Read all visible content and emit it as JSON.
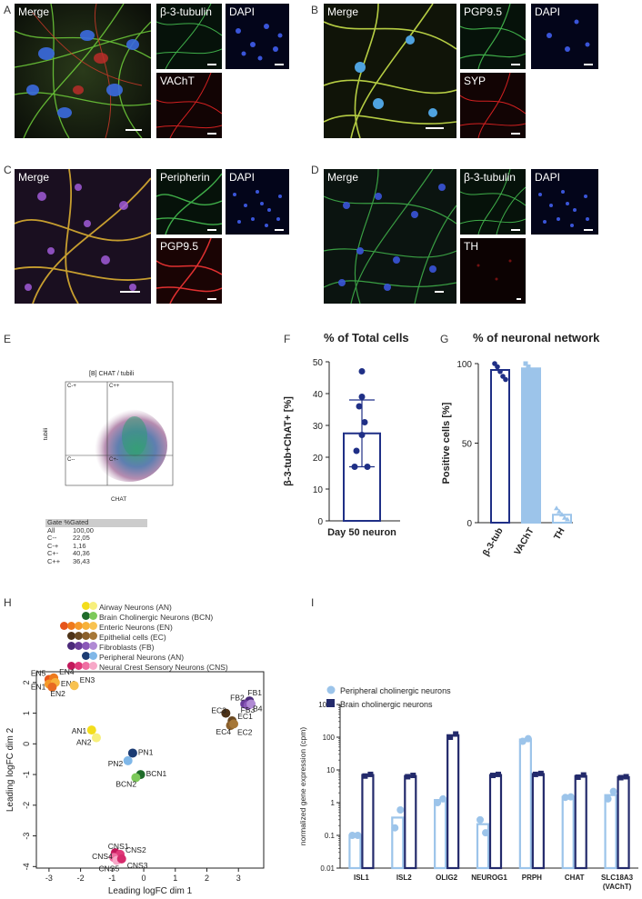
{
  "panels": {
    "A": {
      "label": "A",
      "merge": "Merge",
      "ch1": "β-3-tubulin",
      "ch2": "DAPI",
      "ch3": "VAChT"
    },
    "B": {
      "label": "B",
      "merge": "Merge",
      "ch1": "PGP9.5",
      "ch2": "DAPI",
      "ch3": "SYP"
    },
    "C": {
      "label": "C",
      "merge": "Merge",
      "ch1": "Peripherin",
      "ch2": "DAPI",
      "ch3": "PGP9.5"
    },
    "D": {
      "label": "D",
      "merge": "Merge",
      "ch1": "β-3-tubulin",
      "ch2": "DAPI",
      "ch3": "TH"
    },
    "E": {
      "label": "E"
    },
    "F": {
      "label": "F"
    },
    "G": {
      "label": "G"
    },
    "H": {
      "label": "H"
    },
    "I": {
      "label": "I"
    }
  },
  "colors": {
    "green": "#3fae49",
    "red": "#d32020",
    "blue": "#3a55d9",
    "navy": "#1f2f86",
    "light_blue": "#9cc4ea",
    "dark_navy": "#232a6b"
  },
  "flow": {
    "title": "[B] CHAT / tubili",
    "xlabel": "CHAT",
    "ylabel": "tubili",
    "quadrants": {
      "tl": "C-+",
      "tr": "C++",
      "bl": "C--",
      "br": "C+-"
    },
    "table_header": "Gate %Gated",
    "table_rows": [
      [
        "All",
        "100,00"
      ],
      [
        "C--",
        "22,05"
      ],
      [
        "C-+",
        "1,16"
      ],
      [
        "C+-",
        "40,36"
      ],
      [
        "C++",
        "36,43"
      ]
    ]
  },
  "chart_F": {
    "title": "% of Total cells",
    "ylabel": "β-3-tub+ChAT+ [%]",
    "yticks": [
      "0",
      "10",
      "20",
      "30",
      "40",
      "50"
    ],
    "ylim": [
      0,
      50
    ],
    "category": "Day 50 neuron",
    "mean": 27.5,
    "sd": 10.5,
    "points": [
      47,
      39,
      36,
      31,
      27,
      22,
      17,
      17
    ]
  },
  "chart_G": {
    "title": "% of neuronal network",
    "ylabel": "Positive cells [%]",
    "yticks": [
      "0",
      "50",
      "100"
    ],
    "ylim": [
      0,
      100
    ],
    "categories": [
      "β-3-tub",
      "VAChT",
      "TH"
    ],
    "values": [
      96,
      97,
      5
    ],
    "points": [
      [
        100,
        98,
        95,
        92,
        90
      ],
      [
        100,
        98,
        96,
        94,
        92
      ],
      [
        9,
        7,
        5,
        3,
        2
      ]
    ]
  },
  "chart_H": {
    "xlabel": "Leading logFC dim 1",
    "ylabel": "Leading logFC dim 2",
    "xticks": [
      "-3",
      "-2",
      "-1",
      "0",
      "1",
      "2",
      "3"
    ],
    "yticks": [
      "2",
      "1",
      "0",
      "-1",
      "-2",
      "-3",
      "-4"
    ],
    "legend": [
      {
        "label": "Airway Neurons (AN)",
        "colors": [
          "#f3dd1c",
          "#f7ef7c"
        ]
      },
      {
        "label": "Brain Cholinergic Neurons (BCN)",
        "colors": [
          "#1f6b2a",
          "#7cc95a"
        ]
      },
      {
        "label": "Enteric Neurons (EN)",
        "colors": [
          "#e6551b",
          "#ef7a1c",
          "#f59a2a",
          "#f7b13a",
          "#f8c250"
        ]
      },
      {
        "label": "Epithelial cells (EC)",
        "colors": [
          "#4d3318",
          "#6b4a22",
          "#8a602c",
          "#a67737"
        ]
      },
      {
        "label": "Fibroblasts (FB)",
        "colors": [
          "#4b2a7a",
          "#6a3d9a",
          "#8a58b8",
          "#b08ad4"
        ]
      },
      {
        "label": "Peripheral Neurons (AN)",
        "colors": [
          "#1b3b73",
          "#7fb7e8"
        ]
      },
      {
        "label": "Neural Crest Sensory Neurons (CNS)",
        "colors": [
          "#c2185b",
          "#e03a7a",
          "#ef6fa2",
          "#f7a8c8"
        ]
      }
    ],
    "points": [
      {
        "label": "EN5",
        "x": -3.0,
        "y": 2.1,
        "color": "#e6551b"
      },
      {
        "label": "EN4",
        "x": -2.85,
        "y": 2.15,
        "color": "#ef7a1c"
      },
      {
        "label": "EN1",
        "x": -3.0,
        "y": 1.95,
        "color": "#f59a2a"
      },
      {
        "label": "EN6",
        "x": -2.8,
        "y": 2.0,
        "color": "#f7b13a"
      },
      {
        "label": "EN2",
        "x": -2.9,
        "y": 1.85,
        "color": "#e86a22"
      },
      {
        "label": "EN3",
        "x": -2.2,
        "y": 1.9,
        "color": "#f8c250"
      },
      {
        "label": "FB1",
        "x": 3.35,
        "y": 1.4,
        "color": "#4b2a7a"
      },
      {
        "label": "FB2",
        "x": 3.2,
        "y": 1.3,
        "color": "#6a3d9a"
      },
      {
        "label": "FB3",
        "x": 3.3,
        "y": 1.25,
        "color": "#8a58b8"
      },
      {
        "label": "B4",
        "x": 3.4,
        "y": 1.3,
        "color": "#b08ad4"
      },
      {
        "label": "EC3",
        "x": 2.6,
        "y": 1.0,
        "color": "#4d3318"
      },
      {
        "label": "EC1",
        "x": 2.8,
        "y": 0.75,
        "color": "#6b4a22"
      },
      {
        "label": "EC4",
        "x": 2.75,
        "y": 0.6,
        "color": "#8a602c"
      },
      {
        "label": "EC2",
        "x": 2.85,
        "y": 0.65,
        "color": "#a67737"
      },
      {
        "label": "AN1",
        "x": -1.65,
        "y": 0.45,
        "color": "#f3dd1c"
      },
      {
        "label": "AN2",
        "x": -1.5,
        "y": 0.2,
        "color": "#f7ef7c"
      },
      {
        "label": "PN1",
        "x": -0.35,
        "y": -0.3,
        "color": "#1b3b73"
      },
      {
        "label": "PN2",
        "x": -0.5,
        "y": -0.55,
        "color": "#7fb7e8"
      },
      {
        "label": "BCN1",
        "x": -0.1,
        "y": -1.0,
        "color": "#1f6b2a"
      },
      {
        "label": "BCN2",
        "x": -0.25,
        "y": -1.1,
        "color": "#7cc95a"
      },
      {
        "label": "CNS1",
        "x": -0.9,
        "y": -3.55,
        "color": "#c2185b"
      },
      {
        "label": "CNS2",
        "x": -0.75,
        "y": -3.6,
        "color": "#e03a7a"
      },
      {
        "label": "CNS4",
        "x": -0.95,
        "y": -3.7,
        "color": "#ef6fa2"
      },
      {
        "label": "CNS5",
        "x": -0.85,
        "y": -3.8,
        "color": "#f7a8c8"
      },
      {
        "label": "CNS3",
        "x": -0.7,
        "y": -3.75,
        "color": "#d62a6c"
      }
    ]
  },
  "chart_I": {
    "ylabel": "normalized gene expression (cpm)",
    "yticks": [
      "1000",
      "100",
      "10",
      "1",
      "0.1",
      "0.01"
    ],
    "legend": [
      "Peripheral cholinergic neurons",
      "Brain cholinergic neurons"
    ],
    "categories": [
      "ISL1",
      "ISL2",
      "OLIG2",
      "NEUROG1",
      "PRPH",
      "CHAT",
      "SLC18A3 (VAChT)"
    ],
    "category_lines": [
      [
        "ISL1"
      ],
      [
        "ISL2"
      ],
      [
        "OLIG2"
      ],
      [
        "NEUROG1"
      ],
      [
        "PRPH"
      ],
      [
        "CHAT"
      ],
      [
        "SLC18A3",
        "(VAChT)"
      ]
    ],
    "series": [
      {
        "name": "Peripheral cholinergic neurons",
        "values": [
          0.1,
          0.35,
          1.2,
          0.22,
          85,
          1.5,
          1.7
        ],
        "points": [
          [
            0.1,
            0.1
          ],
          [
            0.17,
            0.6
          ],
          [
            1.0,
            1.3
          ],
          [
            0.3,
            0.12
          ],
          [
            75,
            90
          ],
          [
            1.45,
            1.5
          ],
          [
            1.3,
            2.2
          ]
        ]
      },
      {
        "name": "Brain cholinergic neurons",
        "values": [
          7,
          6.5,
          115,
          7,
          7.5,
          6.5,
          6
        ],
        "points": [
          [
            6.5,
            7.3
          ],
          [
            6.2,
            6.8
          ],
          [
            100,
            125
          ],
          [
            6.8,
            7.3
          ],
          [
            7.3,
            7.8
          ],
          [
            6,
            7
          ],
          [
            5.8,
            6.2
          ]
        ]
      }
    ]
  }
}
